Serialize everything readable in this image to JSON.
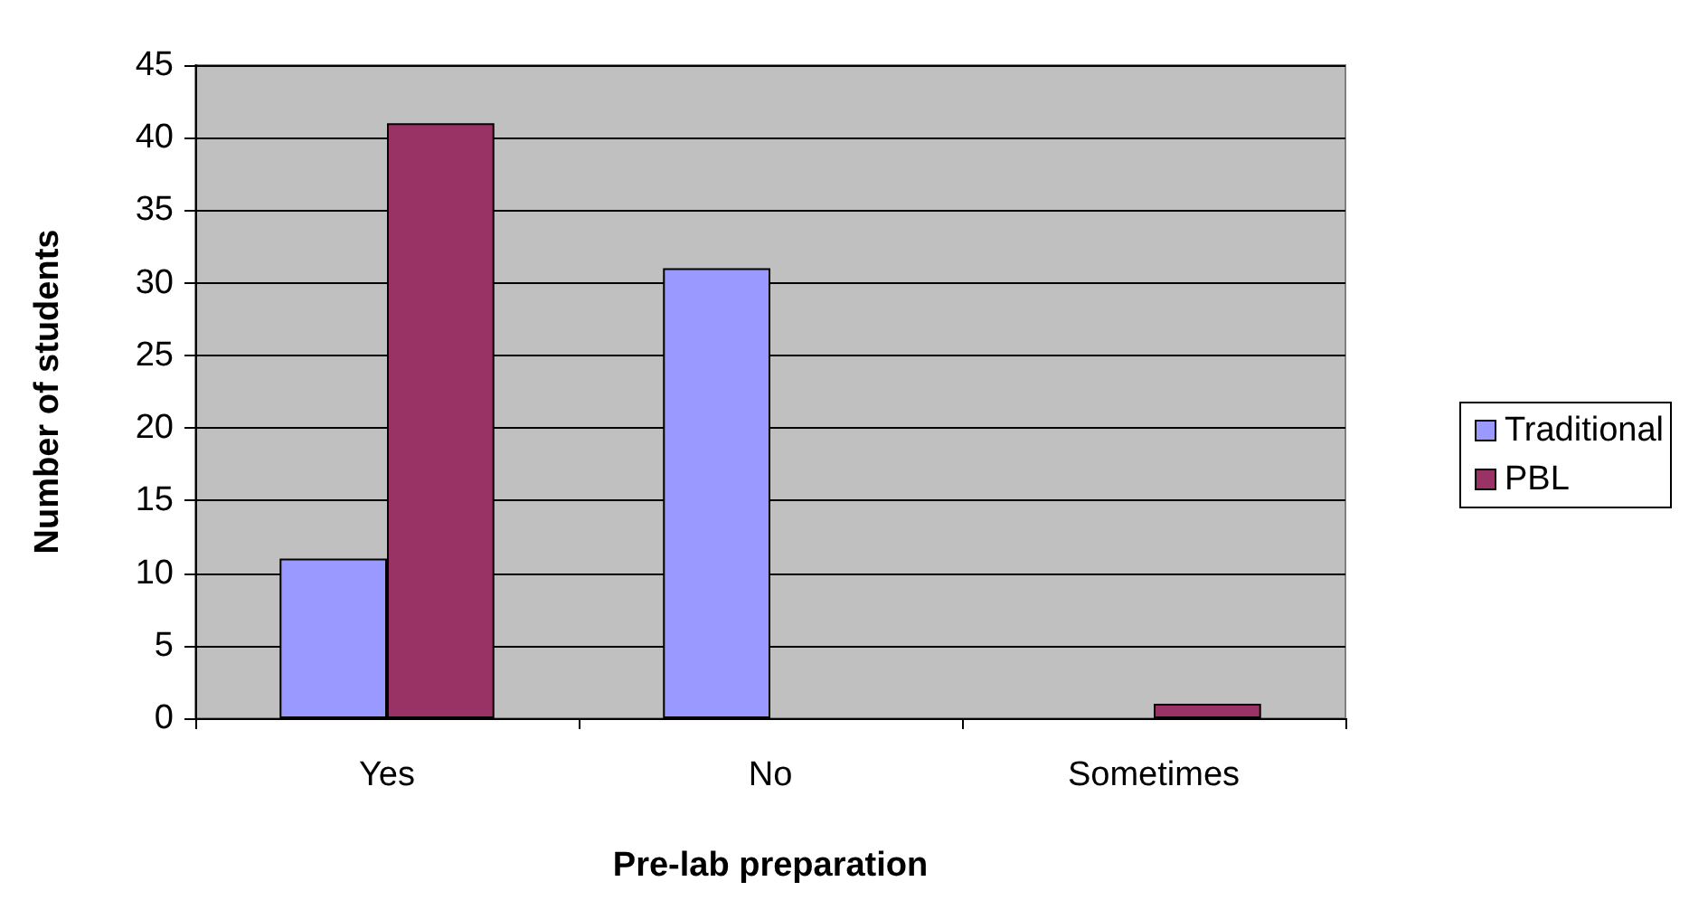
{
  "chart_data": {
    "type": "bar",
    "xlabel": "Pre-lab preparation",
    "ylabel": "Number of students",
    "categories": [
      "Yes",
      "No",
      "Sometimes"
    ],
    "series": [
      {
        "name": "Traditional",
        "color": "#9999ff",
        "values": [
          11,
          31,
          0
        ]
      },
      {
        "name": "PBL",
        "color": "#993366",
        "values": [
          41,
          0,
          1
        ]
      }
    ],
    "ylim": [
      0,
      45
    ],
    "yticks": [
      0,
      5,
      10,
      15,
      20,
      25,
      30,
      35,
      40,
      45
    ],
    "grid": "y",
    "legend": "right"
  }
}
